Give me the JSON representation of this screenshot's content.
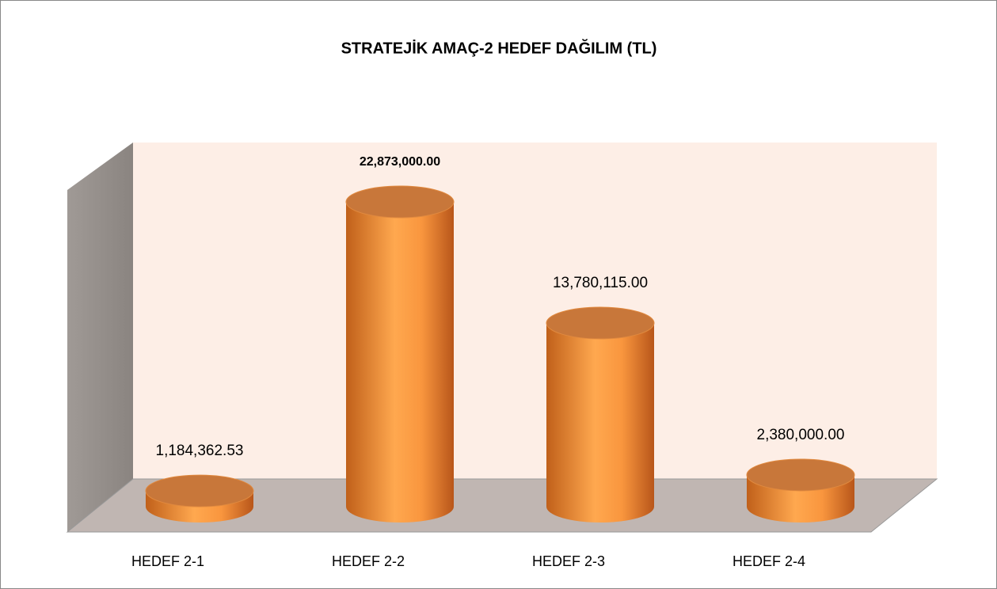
{
  "chart_data": {
    "type": "bar3d-cylinder",
    "title": "STRATEJİK AMAÇ-2 HEDEF DAĞILIM (TL)",
    "categories": [
      "HEDEF 2-1",
      "HEDEF 2-2",
      "HEDEF 2-3",
      "HEDEF 2-4"
    ],
    "values": [
      1184362.53,
      22873000,
      13780115,
      2380000
    ],
    "value_labels": [
      "1,184,362.53",
      "22,873,000.00",
      "13,780,115.00",
      "2,380,000.00"
    ],
    "color": "#f79646"
  }
}
